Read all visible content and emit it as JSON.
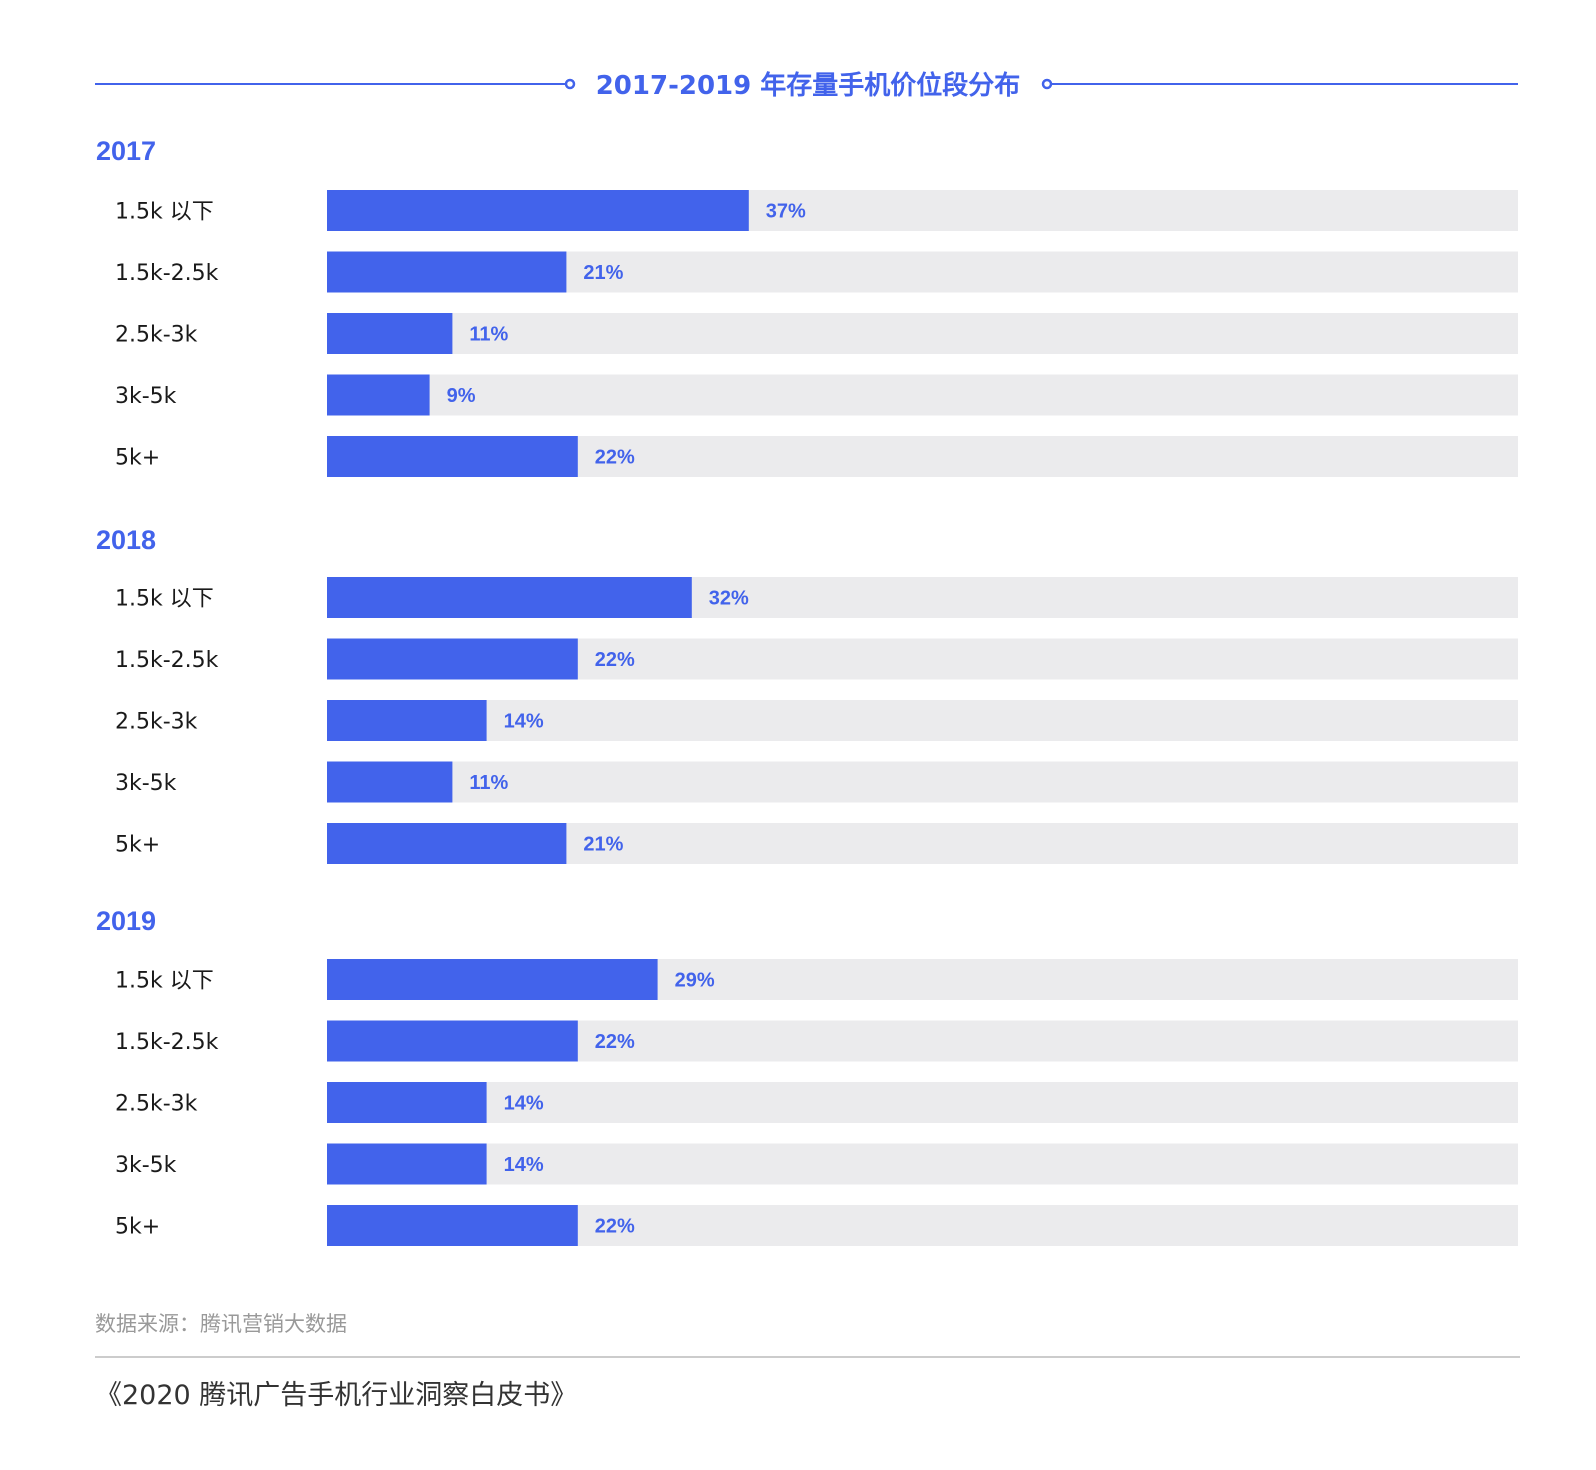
{
  "colors": {
    "accent": "#4263eb",
    "track": "#ebebed",
    "category_text": "#1a1a1a",
    "source_text": "#999999",
    "footer_text": "#333333",
    "divider": "#bbbbbb"
  },
  "source": "数据来源：腾讯营销大数据",
  "footer": "《2020 腾讯广告手机行业洞察白皮书》",
  "chart_data": {
    "type": "bar",
    "orientation": "horizontal",
    "title": "2017-2019 年存量手机价位段分布",
    "xlim": [
      0,
      100
    ],
    "unit": "%",
    "grid": false,
    "legend": "none",
    "categories": [
      "1.5k 以下",
      "1.5k-2.5k",
      "2.5k-3k",
      "3k-5k",
      "5k+"
    ],
    "groups": [
      {
        "name": "2017",
        "values": [
          37,
          21,
          11,
          9,
          22
        ]
      },
      {
        "name": "2018",
        "values": [
          32,
          22,
          14,
          11,
          21
        ]
      },
      {
        "name": "2019",
        "values": [
          29,
          22,
          14,
          14,
          22
        ]
      }
    ]
  }
}
